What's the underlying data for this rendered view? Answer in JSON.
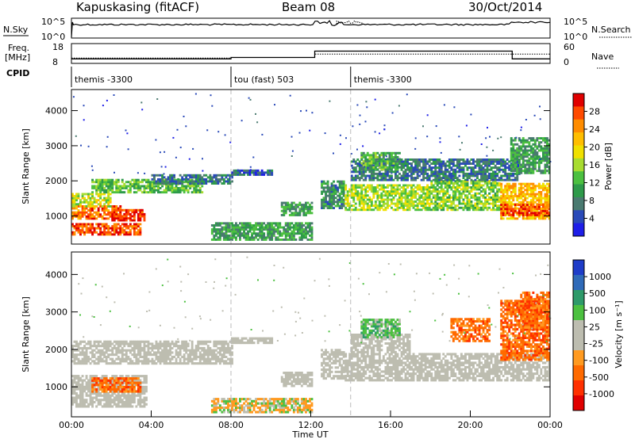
{
  "header": {
    "title": "Kapuskasing (fitACF)",
    "beam": "Beam 08",
    "date": "30/Oct/2014"
  },
  "strip_noise": {
    "left_label": "N.Sky",
    "right_label": "N.Search",
    "left_ticks": [
      "10^5",
      "10^0"
    ],
    "right_ticks": [
      "10^5",
      "10^0"
    ]
  },
  "strip_freq": {
    "left_label_1": "Freq.",
    "left_label_2": "[MHz]",
    "right_label": "Nave",
    "left_ticks": [
      "18",
      "8"
    ],
    "right_ticks": [
      "60",
      "0"
    ],
    "freq_mhz": [
      [
        0,
        10.3
      ],
      [
        8,
        10.3
      ],
      [
        8,
        11.0
      ],
      [
        12.2,
        11.0
      ],
      [
        12.2,
        14.2
      ],
      [
        22.1,
        14.2
      ],
      [
        22.1,
        10.3
      ],
      [
        24,
        10.3
      ]
    ],
    "nave": [
      [
        0,
        16
      ],
      [
        8,
        16
      ],
      [
        8,
        18
      ],
      [
        12.2,
        18
      ],
      [
        12.2,
        28
      ],
      [
        13.8,
        28
      ],
      [
        13.8,
        28
      ],
      [
        24,
        28
      ]
    ]
  },
  "cpid": {
    "label": "CPID",
    "segments": [
      {
        "start": 0,
        "name": "themis -3300"
      },
      {
        "start": 8,
        "name": "tou (fast) 503"
      },
      {
        "start": 14,
        "name": "themis -3300"
      }
    ]
  },
  "chart_data": [
    {
      "type": "heatmap",
      "name": "power",
      "ylabel": "Slant Range [km]",
      "yticks": [
        1000,
        2000,
        3000,
        4000
      ],
      "ylim": [
        200,
        4600
      ],
      "xlim": [
        0,
        24
      ],
      "colorbar": {
        "label": "Power [dB]",
        "ticks": [
          "28",
          "24",
          "20",
          "16",
          "12",
          "8",
          "4"
        ],
        "colors": [
          "#e00000",
          "#ff4a00",
          "#ff8c00",
          "#ffbe00",
          "#f0e000",
          "#a8dc30",
          "#4cc040",
          "#2e9a4a",
          "#4a7a70",
          "#2a4ab8",
          "#1e1ee8"
        ]
      },
      "regions": [
        {
          "t0": 0.0,
          "t1": 3.5,
          "r0": 450,
          "r1": 750,
          "v": 0.9
        },
        {
          "t0": 0.0,
          "t1": 2.5,
          "r0": 900,
          "r1": 1250,
          "v": 0.85
        },
        {
          "t0": 2.0,
          "t1": 3.7,
          "r0": 850,
          "r1": 1150,
          "v": 0.95
        },
        {
          "t0": 0.0,
          "t1": 2.0,
          "r0": 1250,
          "r1": 1650,
          "v": 0.55
        },
        {
          "t0": 1.0,
          "t1": 6.5,
          "r0": 1650,
          "r1": 2050,
          "v": 0.4
        },
        {
          "t0": 4.0,
          "t1": 8.0,
          "r0": 1900,
          "r1": 2150,
          "v": 0.2
        },
        {
          "t0": 8.0,
          "t1": 10.0,
          "r0": 2150,
          "r1": 2300,
          "v": 0.15
        },
        {
          "t0": 7.0,
          "t1": 12.0,
          "r0": 300,
          "r1": 800,
          "v": 0.3
        },
        {
          "t0": 10.5,
          "t1": 12.0,
          "r0": 1000,
          "r1": 1400,
          "v": 0.3
        },
        {
          "t0": 12.5,
          "t1": 13.6,
          "r0": 1200,
          "r1": 2000,
          "v": 0.25
        },
        {
          "t0": 13.7,
          "t1": 18.0,
          "r0": 1150,
          "r1": 1900,
          "v": 0.5
        },
        {
          "t0": 18.0,
          "t1": 21.5,
          "r0": 1150,
          "r1": 2000,
          "v": 0.45
        },
        {
          "t0": 21.5,
          "t1": 24.0,
          "r0": 900,
          "r1": 1900,
          "v": 0.7
        },
        {
          "t0": 21.5,
          "t1": 24.0,
          "r0": 1000,
          "r1": 1300,
          "v": 0.9
        },
        {
          "t0": 14.0,
          "t1": 22.5,
          "r0": 2000,
          "r1": 2600,
          "v": 0.2
        },
        {
          "t0": 14.5,
          "t1": 16.5,
          "r0": 2300,
          "r1": 2800,
          "v": 0.35
        },
        {
          "t0": 22.0,
          "t1": 24.0,
          "r0": 2200,
          "r1": 3200,
          "v": 0.3
        }
      ]
    },
    {
      "type": "heatmap",
      "name": "velocity",
      "ylabel": "Slant Range [km]",
      "yticks": [
        1000,
        2000,
        3000,
        4000
      ],
      "ylim": [
        200,
        4600
      ],
      "xlim": [
        0,
        24
      ],
      "xticks": [
        "00:00",
        "04:00",
        "08:00",
        "12:00",
        "16:00",
        "20:00",
        "00:00"
      ],
      "xlabel": "Time UT",
      "colorbar": {
        "label": "Velocity [m s⁻¹]",
        "ticks": [
          "1000",
          "500",
          "100",
          "25",
          "-25",
          "-100",
          "-500",
          "-1000"
        ],
        "colors": [
          "#1e3cc8",
          "#2f6ab8",
          "#2e9a6a",
          "#4cc040",
          "#bdbdb0",
          "#bdbdb0",
          "#ff9a20",
          "#ff6a00",
          "#ff3000",
          "#e00000"
        ]
      },
      "regions": [
        {
          "t0": 0.0,
          "t1": 3.8,
          "r0": 450,
          "r1": 1300,
          "v": "grey"
        },
        {
          "t0": 1.0,
          "t1": 3.5,
          "r0": 850,
          "r1": 1250,
          "v": "orange"
        },
        {
          "t0": 0.0,
          "t1": 8.0,
          "r0": 1600,
          "r1": 2200,
          "v": "grey"
        },
        {
          "t0": 8.0,
          "t1": 10.0,
          "r0": 2150,
          "r1": 2300,
          "v": "grey"
        },
        {
          "t0": 7.0,
          "t1": 12.0,
          "r0": 300,
          "r1": 700,
          "v": "yellow"
        },
        {
          "t0": 10.5,
          "t1": 12.0,
          "r0": 1000,
          "r1": 1400,
          "v": "grey"
        },
        {
          "t0": 12.5,
          "t1": 13.6,
          "r0": 1200,
          "r1": 2000,
          "v": "grey"
        },
        {
          "t0": 13.7,
          "t1": 24.0,
          "r0": 1150,
          "r1": 1900,
          "v": "grey"
        },
        {
          "t0": 14.0,
          "t1": 17.0,
          "r0": 1900,
          "r1": 2400,
          "v": "grey"
        },
        {
          "t0": 14.5,
          "t1": 16.5,
          "r0": 2300,
          "r1": 2800,
          "v": "green"
        },
        {
          "t0": 19.0,
          "t1": 21.0,
          "r0": 2200,
          "r1": 2800,
          "v": "orange"
        },
        {
          "t0": 21.5,
          "t1": 24.0,
          "r0": 1700,
          "r1": 3300,
          "v": "orange"
        },
        {
          "t0": 22.5,
          "t1": 24.0,
          "r0": 2500,
          "r1": 3500,
          "v": "orange"
        }
      ]
    }
  ]
}
